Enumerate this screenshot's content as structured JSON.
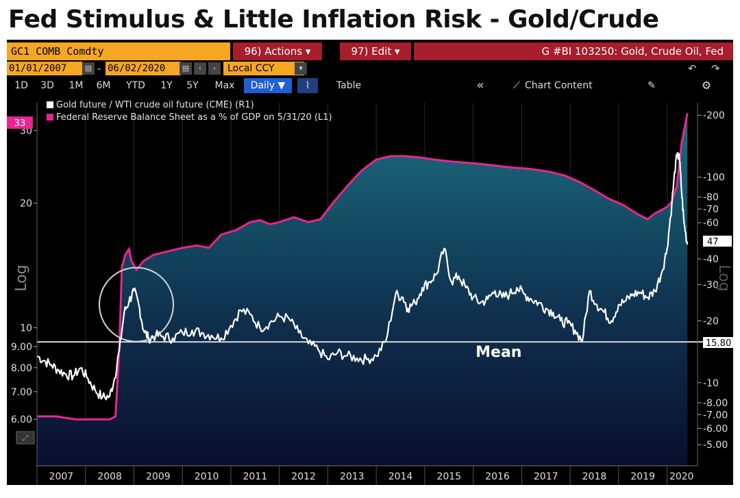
{
  "title": "Fed Stimulus & Little Inflation Risk - Gold/Crude",
  "header": {
    "ticker": "GC1 COMB Comdty",
    "actions_label": "96) Actions ▾",
    "edit_label": "97) Edit ▾",
    "graph_title": "G #BI 103250: Gold, Crude Oil, Fed"
  },
  "range": {
    "start": "01/01/2007",
    "end": "06/02/2020",
    "dash": "-",
    "currency": "Local CCY",
    "undo": "↶",
    "redo": "↷"
  },
  "toolbar": {
    "periods": [
      "1D",
      "3D",
      "1M",
      "6M",
      "YTD",
      "1Y",
      "5Y",
      "Max"
    ],
    "frequency": "Daily ▼",
    "table_label": "Table",
    "collapse": "«",
    "chart_content_label": "Chart Content",
    "edit_icon": "pencil-icon",
    "settings_icon": "gear-icon"
  },
  "colors": {
    "fed": "#e8268f",
    "gold_crude": "#ffffff",
    "area_top": "#1c6d7e",
    "area_bottom": "#0a0e2e",
    "accent_orange": "#f5a623",
    "header_red": "#a61d2c"
  },
  "chart_data": {
    "type": "line",
    "series": [
      {
        "name": "Gold future / WTI crude oil future (CME) (R1)",
        "axis": "right",
        "scale": "log",
        "x": [
          2007.0,
          2007.15,
          2007.3,
          2007.45,
          2007.6,
          2007.75,
          2007.9,
          2008.05,
          2008.2,
          2008.35,
          2008.5,
          2008.6,
          2008.7,
          2008.8,
          2008.9,
          2009.0,
          2009.1,
          2009.2,
          2009.3,
          2009.45,
          2009.6,
          2009.8,
          2010.0,
          2010.2,
          2010.4,
          2010.6,
          2010.8,
          2011.0,
          2011.2,
          2011.4,
          2011.6,
          2011.8,
          2012.0,
          2012.2,
          2012.4,
          2012.6,
          2012.8,
          2013.0,
          2013.2,
          2013.4,
          2013.6,
          2013.8,
          2014.0,
          2014.2,
          2014.4,
          2014.55,
          2014.65,
          2014.8,
          2014.95,
          2015.1,
          2015.25,
          2015.4,
          2015.55,
          2015.7,
          2015.85,
          2016.0,
          2016.15,
          2016.3,
          2016.45,
          2016.6,
          2016.75,
          2016.9,
          2017.05,
          2017.2,
          2017.35,
          2017.5,
          2017.65,
          2017.8,
          2017.95,
          2018.1,
          2018.25,
          2018.4,
          2018.55,
          2018.7,
          2018.85,
          2019.0,
          2019.15,
          2019.3,
          2019.45,
          2019.6,
          2019.75,
          2019.9,
          2020.0,
          2020.1,
          2020.18,
          2020.25,
          2020.3,
          2020.35,
          2020.42
        ],
        "values": [
          13.5,
          12.8,
          12.2,
          11.5,
          11.0,
          10.8,
          11.8,
          10.5,
          9.2,
          8.5,
          8.6,
          10.5,
          14.5,
          22.0,
          25.0,
          28.0,
          24.0,
          18.0,
          16.5,
          17.0,
          16.8,
          16.5,
          17.5,
          18.0,
          17.5,
          17.0,
          16.5,
          19.0,
          22.5,
          21.5,
          18.5,
          19.5,
          21.0,
          20.5,
          17.5,
          15.5,
          14.5,
          13.0,
          14.0,
          13.5,
          13.2,
          13.0,
          13.5,
          16.0,
          27.0,
          26.0,
          23.0,
          24.5,
          29.0,
          31.0,
          34.0,
          45.0,
          31.0,
          33.0,
          29.0,
          26.0,
          24.5,
          25.5,
          28.0,
          26.0,
          27.0,
          29.0,
          27.0,
          25.5,
          24.5,
          23.0,
          22.0,
          20.0,
          19.5,
          18.0,
          16.0,
          28.0,
          24.0,
          22.0,
          20.0,
          24.0,
          25.0,
          27.0,
          27.5,
          26.0,
          28.0,
          35.0,
          45.0,
          75.0,
          120.0,
          130.0,
          85.0,
          60.0,
          47.0
        ]
      },
      {
        "name": "Federal Reserve Balance Sheet as a % of GDP on 5/31/20 (L1)",
        "axis": "left",
        "scale": "log",
        "x": [
          2007.0,
          2007.4,
          2007.8,
          2008.0,
          2008.3,
          2008.5,
          2008.62,
          2008.7,
          2008.75,
          2008.82,
          2008.9,
          2008.95,
          2009.05,
          2009.2,
          2009.4,
          2009.7,
          2010.0,
          2010.3,
          2010.55,
          2010.8,
          2011.1,
          2011.4,
          2011.6,
          2011.8,
          2012.0,
          2012.3,
          2012.6,
          2012.85,
          2013.1,
          2013.4,
          2013.7,
          2014.0,
          2014.3,
          2014.6,
          2014.9,
          2015.2,
          2015.6,
          2016.0,
          2016.4,
          2016.8,
          2017.2,
          2017.6,
          2017.9,
          2018.2,
          2018.5,
          2018.8,
          2019.1,
          2019.4,
          2019.6,
          2019.75,
          2019.9,
          2020.0,
          2020.1,
          2020.2,
          2020.3,
          2020.42
        ],
        "values": [
          6.1,
          6.1,
          6.0,
          6.0,
          6.0,
          6.0,
          6.1,
          9.0,
          14.0,
          15.0,
          15.5,
          14.5,
          13.8,
          14.5,
          15.0,
          15.3,
          15.6,
          15.8,
          15.6,
          16.8,
          17.2,
          18.0,
          18.2,
          17.8,
          18.0,
          18.5,
          18.0,
          18.3,
          20.0,
          22.0,
          24.0,
          25.5,
          26.0,
          26.0,
          25.8,
          25.5,
          25.2,
          25.0,
          24.7,
          24.4,
          24.2,
          23.8,
          23.3,
          22.5,
          21.5,
          20.5,
          19.8,
          18.8,
          18.3,
          18.9,
          19.3,
          19.6,
          20.2,
          22.0,
          28.0,
          33.0
        ]
      }
    ],
    "x_axis": {
      "ticks": [
        "2007",
        "2008",
        "2009",
        "2010",
        "2011",
        "2012",
        "2013",
        "2014",
        "2015",
        "2016",
        "2017",
        "2018",
        "2019",
        "2020"
      ],
      "range": [
        2007.0,
        2020.6
      ]
    },
    "left_axis": {
      "scale": "log",
      "range": [
        5.0,
        35.0
      ],
      "ticks": [
        "6.00",
        "7.00",
        "8.00",
        "9.00",
        "10",
        "20",
        "30"
      ],
      "title": "Log",
      "last_value": "33"
    },
    "right_axis": {
      "scale": "log",
      "range": [
        4.6,
        230
      ],
      "ticks": [
        "5.00",
        "6.00",
        "7.00",
        "8.00",
        "10",
        "20",
        "30",
        "40",
        "60",
        "70",
        "80",
        "100",
        "200"
      ],
      "title": "Log",
      "last_value": "47"
    },
    "mean": {
      "value": 15.8,
      "label": "Mean",
      "value_label": "15.80"
    },
    "annotations": [
      "circle highlighting 2008 spike"
    ]
  }
}
